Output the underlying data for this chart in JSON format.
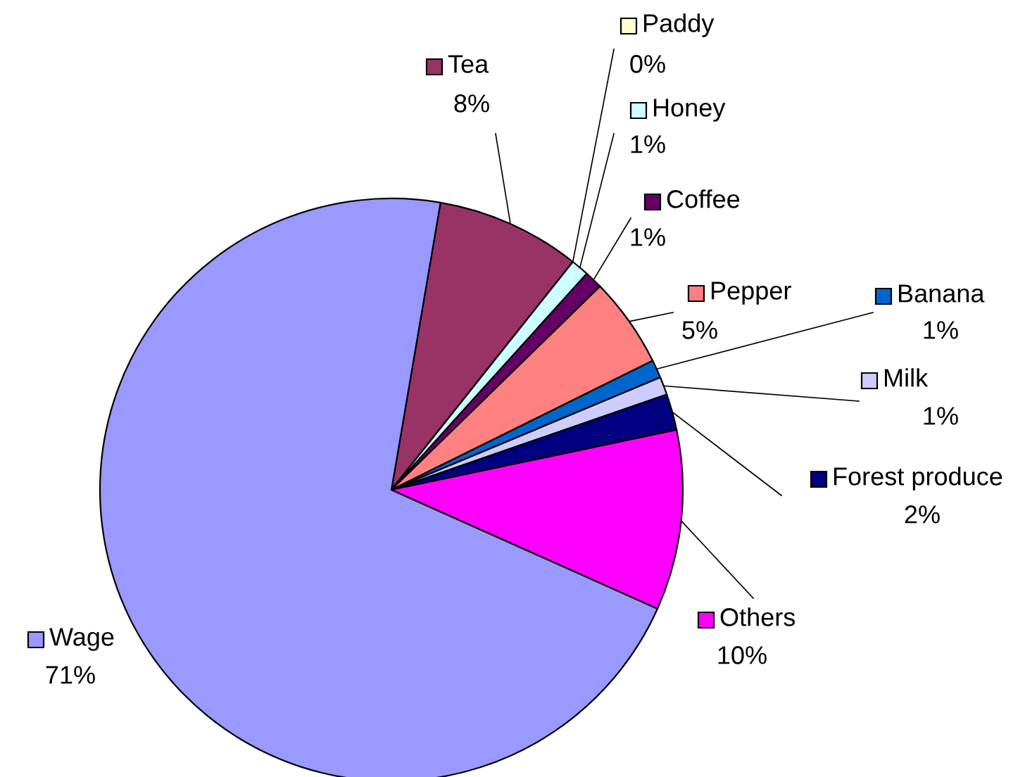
{
  "chart_data": {
    "type": "pie",
    "categories": [
      "Tea",
      "Paddy",
      "Honey",
      "Coffee",
      "Pepper",
      "Banana",
      "Milk",
      "Forest produce",
      "Others",
      "Wage"
    ],
    "values": [
      8,
      0,
      1,
      1,
      5,
      1,
      1,
      2,
      10,
      71
    ],
    "colors": [
      "#993366",
      "#ffffcc",
      "#ccffff",
      "#660066",
      "#ff8080",
      "#0066cc",
      "#ccccff",
      "#000080",
      "#ff00ff",
      "#9999ff"
    ],
    "legend": "right",
    "value_labels": [
      "8%",
      "0%",
      "1%",
      "1%",
      "5%",
      "1%",
      "1%",
      "2%",
      "10%",
      "71%"
    ]
  }
}
